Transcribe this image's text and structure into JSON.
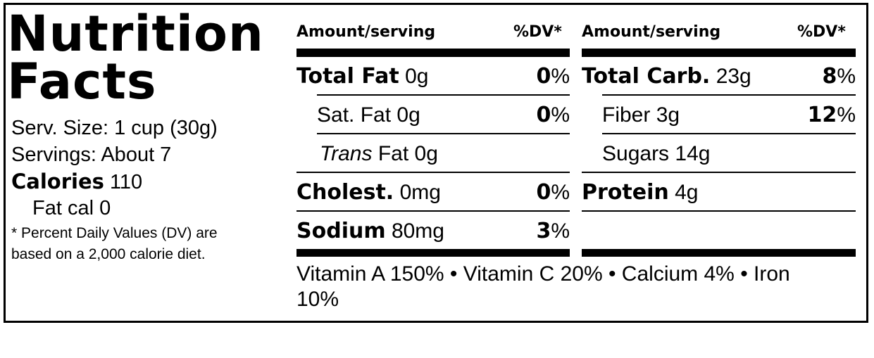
{
  "title_line1": "Nutrition",
  "title_line2": "Facts",
  "serving_size": "Serv. Size: 1 cup (30g)",
  "servings": "Servings: About 7",
  "calories_label": "Calories",
  "calories_value": "110",
  "fat_cal": "Fat cal 0",
  "footnote_line1": "* Percent Daily Values (DV) are",
  "footnote_line2": "based on a 2,000 calorie diet.",
  "left_column": {
    "header_amount": "Amount/serving",
    "header_dv": "%DV*",
    "rows": [
      {
        "name": "Total Fat",
        "amount": "0g",
        "dv": "0",
        "bold": true
      },
      {
        "name": "Sat. Fat",
        "amount": "0g",
        "dv": "0",
        "bold": false
      },
      {
        "name": "Trans",
        "suffix": "Fat",
        "amount": "0g",
        "dv": "",
        "bold": false
      },
      {
        "name": "Cholest.",
        "amount": "0mg",
        "dv": "0",
        "bold": true
      },
      {
        "name": "Sodium",
        "amount": "80mg",
        "dv": "3",
        "bold": true
      }
    ]
  },
  "right_column": {
    "header_amount": "Amount/serving",
    "header_dv": "%DV*",
    "rows": [
      {
        "name": "Total Carb.",
        "amount": "23g",
        "dv": "8",
        "bold": true
      },
      {
        "name": "Fiber",
        "amount": "3g",
        "dv": "12",
        "bold": false
      },
      {
        "name": "Sugars",
        "amount": "14g",
        "dv": "",
        "bold": false
      },
      {
        "name": "Protein",
        "amount": "4g",
        "dv": "",
        "bold": true
      }
    ]
  },
  "percent_sign": "%",
  "vitamins_line1": "Vitamin A 150% • Vitamin C 20% • Calcium 4% • Iron",
  "vitamins_line2": "10%"
}
